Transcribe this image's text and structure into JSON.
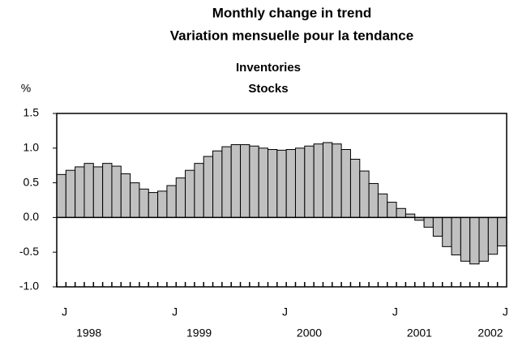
{
  "chart_data": {
    "type": "bar",
    "title": "Monthly change in trend",
    "subtitle": "Variation mensuelle pour la tendance",
    "series_title": "Inventories",
    "series_subtitle": "Stocks",
    "y_label": "%",
    "color": "#c0c0c0",
    "categories": [
      "J",
      null,
      null,
      null,
      null,
      null,
      null,
      null,
      null,
      null,
      null,
      null,
      "J",
      null,
      null,
      null,
      null,
      null,
      null,
      null,
      null,
      null,
      null,
      null,
      "J",
      null,
      null,
      null,
      null,
      null,
      null,
      null,
      null,
      null,
      null,
      null,
      "J",
      null,
      null,
      null,
      null,
      null,
      null,
      null,
      null,
      null,
      null,
      null,
      "J"
    ],
    "years": [
      "1998",
      null,
      null,
      null,
      null,
      null,
      null,
      null,
      null,
      null,
      null,
      null,
      "1999",
      null,
      null,
      null,
      null,
      null,
      null,
      null,
      null,
      null,
      null,
      null,
      "2000",
      null,
      null,
      null,
      null,
      null,
      null,
      null,
      null,
      null,
      null,
      null,
      "2001",
      null,
      null,
      null,
      null,
      null,
      null,
      null,
      null,
      null,
      null,
      null,
      "2002"
    ],
    "values": [
      0.62,
      0.68,
      0.73,
      0.78,
      0.73,
      0.78,
      0.74,
      0.63,
      0.5,
      0.41,
      0.36,
      0.38,
      0.46,
      0.57,
      0.68,
      0.78,
      0.88,
      0.96,
      1.02,
      1.05,
      1.05,
      1.03,
      1.0,
      0.98,
      0.97,
      0.98,
      1.0,
      1.03,
      1.06,
      1.08,
      1.06,
      0.98,
      0.84,
      0.67,
      0.49,
      0.34,
      0.22,
      0.13,
      0.05,
      -0.04,
      -0.14,
      -0.27,
      -0.42,
      -0.54,
      -0.63,
      -0.67,
      -0.63,
      -0.53,
      -0.41
    ],
    "ylim": [
      -1,
      1.5
    ],
    "yticks": [
      1.5,
      {
        "value": 1,
        "label": "1.0"
      },
      0.5,
      {
        "value": 0,
        "label": "0.0"
      },
      -0.5,
      {
        "value": -1,
        "label": "-1.0"
      }
    ]
  }
}
